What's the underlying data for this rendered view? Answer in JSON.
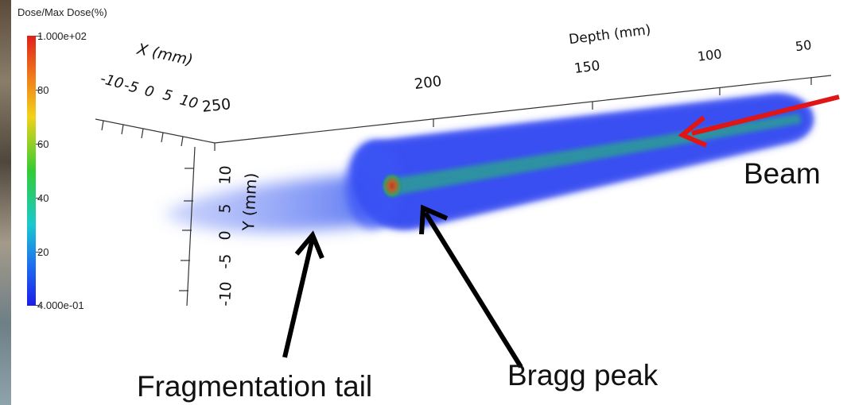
{
  "colorbar": {
    "title": "Dose/Max Dose(%)",
    "max_label": "1.000e+02",
    "min_label": "4.000e-01",
    "ticks": [
      "80",
      "60",
      "40",
      "20"
    ],
    "colors": [
      "#e0201a",
      "#f2d21a",
      "#33cc33",
      "#19c9d0",
      "#1c1ce8"
    ]
  },
  "axes": {
    "x_title": "X (mm)",
    "x_ticks": [
      "-10",
      "-5",
      "0",
      "5",
      "10"
    ],
    "depth_title": "Depth (mm)",
    "depth_ticks": [
      "250",
      "200",
      "150",
      "100",
      "50"
    ],
    "y_title": "Y (mm)",
    "y_ticks": [
      "10",
      "5",
      "0",
      "-5",
      "-10"
    ]
  },
  "annotations": {
    "beam": "Beam",
    "bragg_peak": "Bragg peak",
    "fragmentation_tail": "Fragmentation tail"
  },
  "colors": {
    "beam_arrow": "#e01515",
    "pointer_arrow": "#000000",
    "dose_blue": "#1e3cf0",
    "dose_core": "#2aa888"
  }
}
